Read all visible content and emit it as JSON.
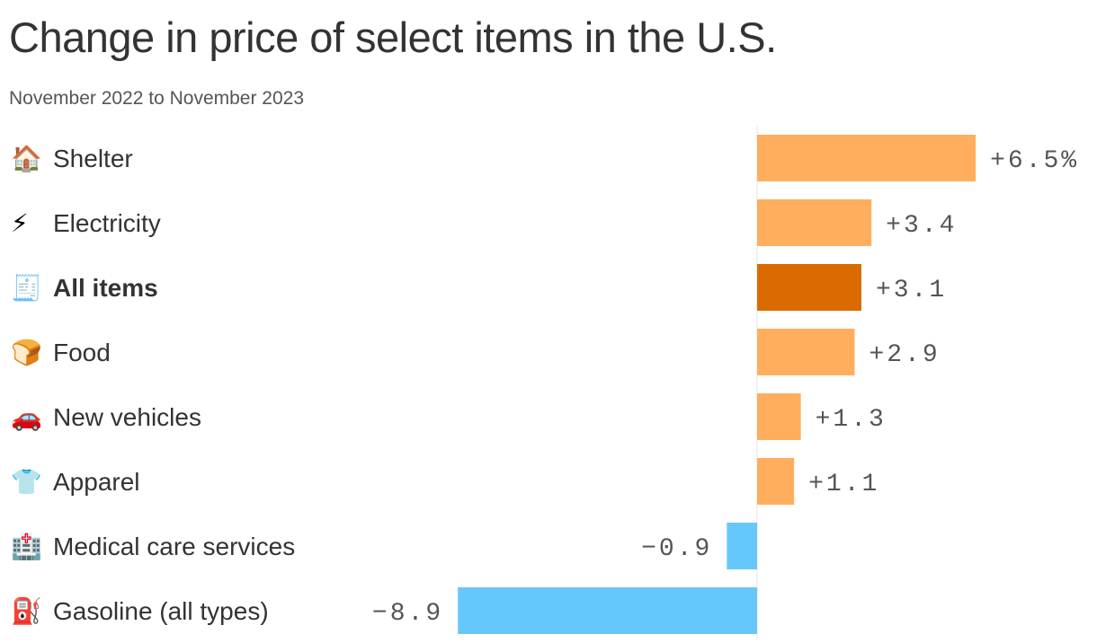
{
  "chart_data": {
    "type": "bar",
    "orientation": "horizontal",
    "title": "Change in price of select items in the U.S.",
    "subtitle": "November 2022 to November 2023",
    "xlabel": "",
    "ylabel": "",
    "unit": "%",
    "xlim": [
      -8.9,
      6.5
    ],
    "grid": false,
    "legend": "none",
    "categories": [
      "Shelter",
      "Electricity",
      "All items",
      "Food",
      "New vehicles",
      "Apparel",
      "Medical care services",
      "Gasoline (all types)"
    ],
    "icons": [
      "house-icon",
      "lightning-icon",
      "receipt-icon",
      "bread-icon",
      "car-icon",
      "tshirt-icon",
      "hospital-icon",
      "fuel-pump-icon"
    ],
    "icon_glyphs": [
      "🏠",
      "⚡",
      "🧾",
      "🍞",
      "🚗",
      "👕",
      "🏥",
      "⛽"
    ],
    "values": [
      6.5,
      3.4,
      3.1,
      2.9,
      1.3,
      1.1,
      -0.9,
      -8.9
    ],
    "value_labels": [
      "+6.5%",
      "+3.4",
      "+3.1",
      "+2.9",
      "+1.3",
      "+1.1",
      "−0.9",
      "−8.9"
    ],
    "highlight": [
      false,
      false,
      true,
      false,
      false,
      false,
      false,
      false
    ],
    "colors": {
      "positive": "#ffae5e",
      "highlight": "#d96b00",
      "negative": "#66c8fa",
      "zero_line": "#e6e6e6"
    }
  }
}
